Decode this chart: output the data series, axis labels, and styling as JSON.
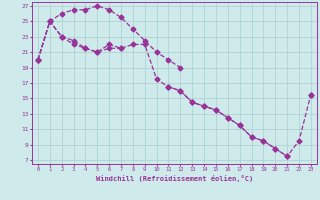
{
  "xlabel": "Windchill (Refroidissement éolien,°C)",
  "x_hours": [
    0,
    1,
    2,
    3,
    4,
    5,
    6,
    7,
    8,
    9,
    10,
    11,
    12,
    13,
    14,
    15,
    16,
    17,
    18,
    19,
    20,
    21,
    22,
    23
  ],
  "line_top_y": [
    20.0,
    25.0,
    26.0,
    26.5,
    26.5,
    27.0,
    26.5,
    25.5,
    24.0,
    22.5,
    21.0,
    20.0,
    19.0,
    null,
    null,
    null,
    null,
    null,
    null,
    null,
    null,
    null,
    null,
    15.5
  ],
  "line_mid_y": [
    20.0,
    25.0,
    23.0,
    22.0,
    21.5,
    21.0,
    22.0,
    21.5,
    22.0,
    22.0,
    17.5,
    16.5,
    16.0,
    14.5,
    14.0,
    13.5,
    12.5,
    11.5,
    10.0,
    9.5,
    8.5,
    7.5,
    9.5,
    15.5
  ],
  "line_bot_y": [
    20.0,
    25.0,
    23.0,
    22.5,
    21.5,
    21.0,
    21.5,
    21.5,
    null,
    null,
    null,
    16.5,
    16.0,
    14.5,
    14.0,
    13.5,
    12.5,
    11.5,
    10.0,
    9.5,
    8.5,
    7.5,
    null,
    null
  ],
  "line_color": "#993399",
  "bg_color": "#ceeaea",
  "grid_color": "#aacece",
  "xlim": [
    0,
    23
  ],
  "ylim": [
    7,
    27
  ],
  "yticks": [
    7,
    9,
    11,
    13,
    15,
    17,
    19,
    21,
    23,
    25,
    27
  ],
  "xticks": [
    0,
    1,
    2,
    3,
    4,
    5,
    6,
    7,
    8,
    9,
    10,
    11,
    12,
    13,
    14,
    15,
    16,
    17,
    18,
    19,
    20,
    21,
    22,
    23
  ]
}
